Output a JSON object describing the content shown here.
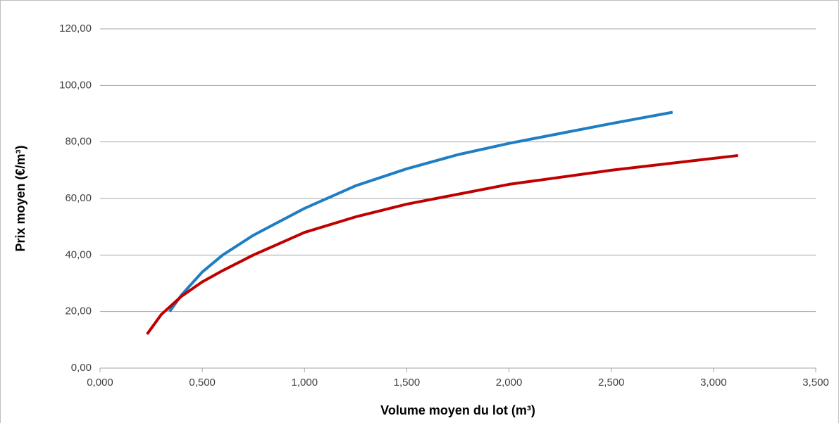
{
  "chart_data": {
    "type": "line",
    "x_label": "Volume moyen du lot (m³)",
    "y_label": "Prix moyen (€/m³)",
    "series": [
      {
        "color": "#1f7dc4",
        "x": [
          0.34,
          0.4,
          0.5,
          0.6,
          0.75,
          1.0,
          1.25,
          1.5,
          1.75,
          2.0,
          2.25,
          2.5,
          2.8
        ],
        "values": [
          20,
          26,
          34,
          40,
          47,
          56.5,
          64.5,
          70.5,
          75.5,
          79.5,
          83,
          86.5,
          90.5
        ]
      },
      {
        "color": "#c00000",
        "x": [
          0.23,
          0.3,
          0.4,
          0.5,
          0.6,
          0.75,
          1.0,
          1.25,
          1.5,
          1.75,
          2.0,
          2.5,
          3.12
        ],
        "values": [
          12,
          19,
          25.5,
          30.5,
          34.5,
          40,
          48,
          53.5,
          58,
          61.5,
          65,
          70,
          75.2
        ]
      }
    ],
    "xlim": [
      0,
      3.5
    ],
    "xticks": [
      {
        "value": 0,
        "label": "0,000"
      },
      {
        "value": 0.5,
        "label": "0,500"
      },
      {
        "value": 1,
        "label": "1,000"
      },
      {
        "value": 1.5,
        "label": "1,500"
      },
      {
        "value": 2,
        "label": "2,000"
      },
      {
        "value": 2.5,
        "label": "2,500"
      },
      {
        "value": 3,
        "label": "3,000"
      },
      {
        "value": 3.5,
        "label": "3,500"
      }
    ],
    "ylim": [
      0,
      120
    ],
    "yticks": [
      {
        "value": 0,
        "label": "0,00"
      },
      {
        "value": 20,
        "label": "20,00"
      },
      {
        "value": 40,
        "label": "40,00"
      },
      {
        "value": 60,
        "label": "60,00"
      },
      {
        "value": 80,
        "label": "80,00"
      },
      {
        "value": 100,
        "label": "100,00"
      },
      {
        "value": 120,
        "label": "120,00"
      }
    ],
    "grid": true
  }
}
